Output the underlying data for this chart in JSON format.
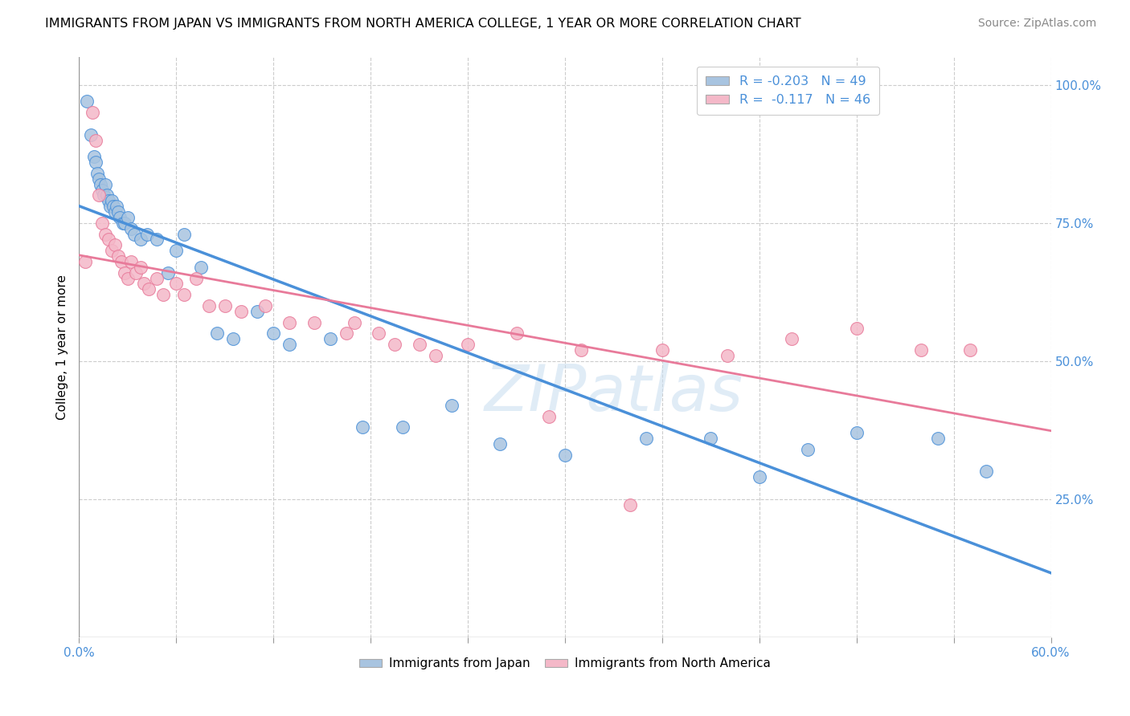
{
  "title": "IMMIGRANTS FROM JAPAN VS IMMIGRANTS FROM NORTH AMERICA COLLEGE, 1 YEAR OR MORE CORRELATION CHART",
  "source": "Source: ZipAtlas.com",
  "ylabel": "College, 1 year or more",
  "japan_color": "#a8c4e0",
  "japan_line_color": "#4a90d9",
  "north_america_color": "#f4b8c8",
  "north_america_line_color": "#e87a9a",
  "watermark": "ZIPatlas",
  "xlim": [
    0.0,
    0.6
  ],
  "ylim": [
    0.0,
    1.05
  ],
  "legend_r1": "R = -0.203   N = 49",
  "legend_r2": "R =  -0.117   N = 46",
  "japan_x": [
    0.005,
    0.007,
    0.009,
    0.01,
    0.011,
    0.012,
    0.013,
    0.014,
    0.015,
    0.016,
    0.017,
    0.018,
    0.019,
    0.02,
    0.021,
    0.022,
    0.023,
    0.024,
    0.025,
    0.027,
    0.028,
    0.03,
    0.032,
    0.034,
    0.038,
    0.042,
    0.048,
    0.055,
    0.06,
    0.065,
    0.075,
    0.085,
    0.095,
    0.11,
    0.12,
    0.13,
    0.155,
    0.175,
    0.2,
    0.23,
    0.26,
    0.3,
    0.35,
    0.39,
    0.42,
    0.45,
    0.48,
    0.53,
    0.56
  ],
  "japan_y": [
    0.97,
    0.91,
    0.87,
    0.86,
    0.84,
    0.83,
    0.82,
    0.81,
    0.8,
    0.82,
    0.8,
    0.79,
    0.78,
    0.79,
    0.78,
    0.77,
    0.78,
    0.77,
    0.76,
    0.75,
    0.75,
    0.76,
    0.74,
    0.73,
    0.72,
    0.73,
    0.72,
    0.66,
    0.7,
    0.73,
    0.67,
    0.55,
    0.54,
    0.59,
    0.55,
    0.53,
    0.54,
    0.38,
    0.38,
    0.42,
    0.35,
    0.33,
    0.36,
    0.36,
    0.29,
    0.34,
    0.37,
    0.36,
    0.3
  ],
  "na_x": [
    0.004,
    0.008,
    0.01,
    0.012,
    0.014,
    0.016,
    0.018,
    0.02,
    0.022,
    0.024,
    0.026,
    0.028,
    0.03,
    0.032,
    0.035,
    0.038,
    0.04,
    0.043,
    0.048,
    0.052,
    0.06,
    0.065,
    0.072,
    0.08,
    0.09,
    0.1,
    0.115,
    0.13,
    0.145,
    0.165,
    0.185,
    0.21,
    0.24,
    0.27,
    0.31,
    0.36,
    0.4,
    0.44,
    0.48,
    0.52,
    0.55,
    0.17,
    0.195,
    0.22,
    0.29,
    0.34
  ],
  "na_y": [
    0.68,
    0.95,
    0.9,
    0.8,
    0.75,
    0.73,
    0.72,
    0.7,
    0.71,
    0.69,
    0.68,
    0.66,
    0.65,
    0.68,
    0.66,
    0.67,
    0.64,
    0.63,
    0.65,
    0.62,
    0.64,
    0.62,
    0.65,
    0.6,
    0.6,
    0.59,
    0.6,
    0.57,
    0.57,
    0.55,
    0.55,
    0.53,
    0.53,
    0.55,
    0.52,
    0.52,
    0.51,
    0.54,
    0.56,
    0.52,
    0.52,
    0.57,
    0.53,
    0.51,
    0.4,
    0.24
  ]
}
